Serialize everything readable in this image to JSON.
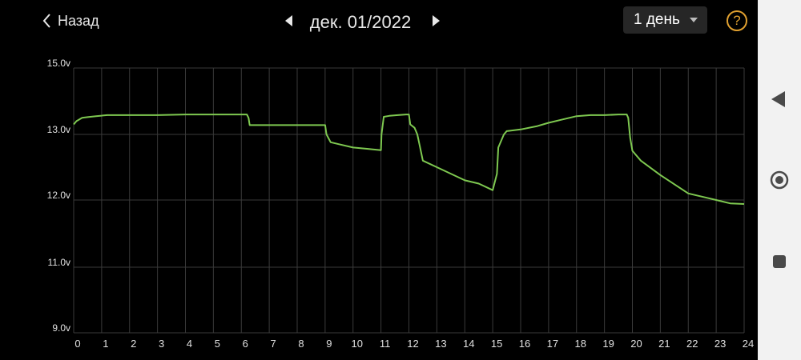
{
  "header": {
    "back_label": "Назад",
    "date_label": "дек. 01/2022",
    "period_label": "1 день",
    "help_symbol": "?"
  },
  "colors": {
    "background": "#000000",
    "line": "#7ec850",
    "grid": "#3a3a3a",
    "accent": "#e0a030",
    "navbar": "#f2f2f2"
  },
  "icons": [
    "chevron-left-icon",
    "triangle-left-icon",
    "triangle-right-icon",
    "caret-down-icon",
    "help-icon",
    "nav-back-icon",
    "nav-home-icon",
    "nav-recents-icon"
  ],
  "chart_data": {
    "type": "line",
    "title": "",
    "xlabel": "",
    "ylabel": "",
    "xlim": [
      0,
      24
    ],
    "ylim": [
      9.0,
      15.0
    ],
    "y_ticks": [
      "9.0v",
      "11.0v",
      "12.0v",
      "13.0v",
      "15.0v"
    ],
    "x_ticks": [
      "0",
      "1",
      "2",
      "3",
      "4",
      "5",
      "6",
      "7",
      "8",
      "9",
      "10",
      "11",
      "12",
      "13",
      "14",
      "15",
      "16",
      "17",
      "18",
      "19",
      "20",
      "21",
      "22",
      "23",
      "24"
    ],
    "grid": true,
    "series": [
      {
        "x": [
          0.0,
          0.1,
          0.3,
          0.5,
          0.8,
          1.2,
          2.0,
          3.0,
          4.0,
          5.0,
          5.8,
          6.2,
          6.26,
          6.3,
          7.0,
          8.0,
          8.8,
          9.0,
          9.05,
          9.2,
          9.5,
          10.0,
          10.5,
          11.0,
          11.02,
          11.1,
          11.3,
          11.6,
          11.9,
          12.0,
          12.05,
          12.2,
          12.3,
          12.4,
          12.5,
          13.0,
          14.0,
          14.5,
          15.0,
          15.15,
          15.2,
          15.4,
          15.5,
          16.0,
          16.6,
          17.0,
          17.5,
          18.0,
          18.5,
          19.0,
          19.5,
          19.8,
          19.85,
          19.92,
          20.0,
          20.3,
          21.0,
          22.0,
          23.0,
          23.5,
          24.0
        ],
        "y": [
          13.3,
          13.4,
          13.5,
          13.52,
          13.55,
          13.58,
          13.58,
          13.58,
          13.6,
          13.6,
          13.6,
          13.6,
          13.5,
          13.28,
          13.28,
          13.28,
          13.28,
          13.28,
          13.0,
          12.88,
          12.85,
          12.8,
          12.78,
          12.76,
          13.0,
          13.53,
          13.56,
          13.58,
          13.6,
          13.6,
          13.3,
          13.2,
          13.0,
          12.8,
          12.6,
          12.5,
          12.3,
          12.25,
          12.15,
          12.4,
          12.8,
          13.0,
          13.1,
          13.15,
          13.25,
          13.35,
          13.45,
          13.55,
          13.58,
          13.58,
          13.6,
          13.6,
          13.5,
          12.95,
          12.75,
          12.6,
          12.38,
          12.1,
          12.0,
          11.95,
          11.94
        ]
      }
    ]
  }
}
